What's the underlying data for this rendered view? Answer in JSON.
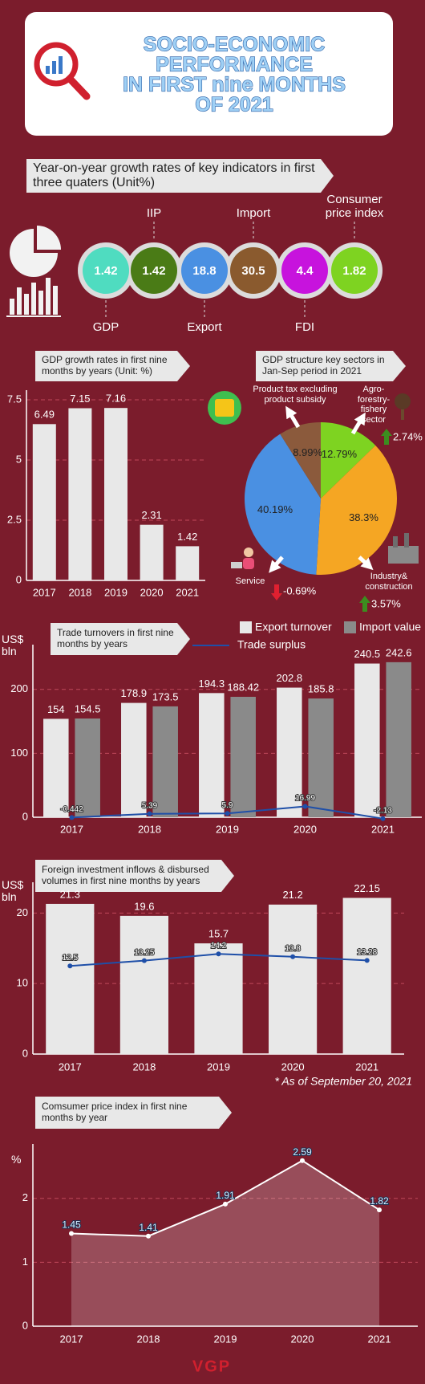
{
  "header": {
    "title": [
      "SOCIO-ECONOMIC",
      "PERFORMANCE",
      "IN FIRST nine MONTHS",
      "OF 2021"
    ]
  },
  "indicators": {
    "title": "Year-on-year growth rates of key indicators in first three quaters (Unit%)",
    "items": [
      {
        "label": "GDP",
        "value": 1.42,
        "color": "#4fdcc0"
      },
      {
        "label": "IIP",
        "value": 1.42,
        "color": "#4a7b16"
      },
      {
        "label": "Export",
        "value": 18.8,
        "color": "#4a90e2"
      },
      {
        "label": "Import",
        "value": 30.5,
        "color": "#8a5a2e"
      },
      {
        "label": "FDI",
        "value": 4.4,
        "color": "#c713dd"
      },
      {
        "label": "Consumer price index",
        "value": 1.82,
        "color": "#7ed321"
      }
    ]
  },
  "chart_data": [
    {
      "type": "bar",
      "title": "GDP  growth rates in first nine months by years (Unit: %)",
      "categories": [
        "2017",
        "2018",
        "2019",
        "2020",
        "2021"
      ],
      "values": [
        6.49,
        7.15,
        7.16,
        2.31,
        1.42
      ],
      "color": "#e8e8e8",
      "ylim": [
        0,
        7.5
      ],
      "yticks": [
        0,
        2.5,
        5,
        7.5
      ],
      "grid": true
    },
    {
      "type": "pie",
      "title": "GDP structure key sectors in Jan-Sep period in 2021",
      "categories": [
        "Agro-forestry-fishery sector",
        "Industry& construction",
        "Service",
        "Product tax excluding product subsidy"
      ],
      "values": [
        12.79,
        38.3,
        40.19,
        8.99
      ],
      "value_labels": [
        "12.79%",
        "38.3%",
        "40.19%",
        "8.99%"
      ],
      "colors": [
        "#7ed321",
        "#f5a623",
        "#4a90e2",
        "#8b5a3c"
      ],
      "changes": [
        2.74,
        3.57,
        -0.69,
        null
      ],
      "change_labels": [
        "2.74%",
        "3.57%",
        "-0.69%",
        null
      ]
    },
    {
      "type": "bar",
      "title": "Trade turnovers in first nine months by years",
      "y_label": "US$ bln",
      "categories": [
        "2017",
        "2018",
        "2019",
        "2020",
        "2021"
      ],
      "series": [
        {
          "name": "Export turnover",
          "color": "#e8e8e8",
          "values": [
            154,
            178.9,
            194.3,
            202.8,
            240.5
          ]
        },
        {
          "name": "Import value",
          "color": "#8a8a8a",
          "values": [
            154.5,
            173.5,
            188.42,
            185.8,
            242.6
          ]
        },
        {
          "name": "Trade surplus",
          "type": "line",
          "color": "#1f4fa8",
          "values": [
            -0.442,
            5.39,
            5.9,
            16.99,
            -2.13
          ]
        }
      ],
      "ylim": [
        0,
        255
      ],
      "yticks": [
        0,
        100,
        200
      ],
      "grid": true
    },
    {
      "type": "bar",
      "title": "Foreign investment inflows & disbursed volumes in first nine months  by years",
      "y_label": "US$ bln",
      "categories": [
        "2017",
        "2018",
        "2019",
        "2020",
        "2021"
      ],
      "series": [
        {
          "color": "#e8e8e8",
          "values": [
            21.3,
            19.6,
            15.7,
            21.2,
            22.15
          ]
        },
        {
          "type": "line",
          "color": "#1f4fa8",
          "values": [
            12.5,
            13.25,
            14.2,
            13.8,
            13.28
          ]
        }
      ],
      "ylim": [
        0,
        23
      ],
      "yticks": [
        0,
        10,
        20
      ],
      "grid": true,
      "note": "* As of September 20, 2021"
    },
    {
      "type": "area",
      "title": "Comsumer price index in first nine months by year",
      "y_label": "%",
      "categories": [
        "2017",
        "2018",
        "2019",
        "2020",
        "2021"
      ],
      "values": [
        1.45,
        1.41,
        1.91,
        2.59,
        1.82
      ],
      "color": "#ffffff",
      "ylim": [
        0,
        2.7
      ],
      "yticks": [
        0,
        1,
        2
      ],
      "grid": true
    }
  ],
  "footer": {
    "logo": "VGP"
  }
}
